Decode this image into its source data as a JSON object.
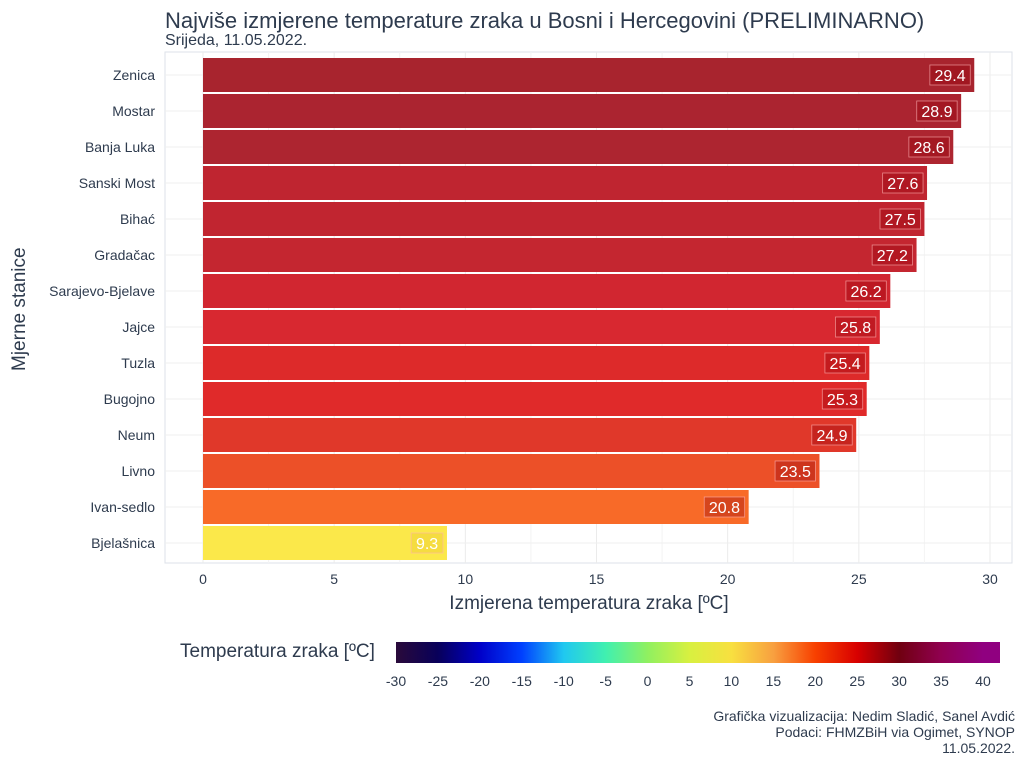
{
  "chart_data": {
    "type": "bar",
    "orientation": "horizontal",
    "title": "Najviše izmjerene temperature zraka u Bosni i Hercegovini (PRELIMINARNO)",
    "subtitle": "Srijeda, 11.05.2022.",
    "xlabel": "Izmjerena temperatura zraka [ºC]",
    "ylabel": "Mjerne stanice",
    "xlim": [
      -1.5,
      30.8
    ],
    "xticks": [
      "0",
      "5",
      "10",
      "15",
      "20",
      "25",
      "30"
    ],
    "grid": true,
    "categories": [
      "Zenica",
      "Mostar",
      "Banja Luka",
      "Sanski Most",
      "Bihać",
      "Gradačac",
      "Sarajevo-Bjelave",
      "Jajce",
      "Tuzla",
      "Bugojno",
      "Neum",
      "Livno",
      "Ivan-sedlo",
      "Bjelašnica"
    ],
    "values": [
      29.4,
      28.9,
      28.6,
      27.6,
      27.5,
      27.2,
      26.2,
      25.8,
      25.4,
      25.3,
      24.9,
      23.5,
      20.8,
      9.3
    ],
    "labels": [
      "29.4",
      "28.9",
      "28.6",
      "27.6",
      "27.5",
      "27.2",
      "26.2",
      "25.8",
      "25.4",
      "25.3",
      "24.9",
      "23.5",
      "20.8",
      "9.3"
    ],
    "colors": [
      "#a8242e",
      "#ab2430",
      "#ad2530",
      "#bf2530",
      "#c12530",
      "#c42630",
      "#d12630",
      "#d82830",
      "#dd2a2a",
      "#e02a2a",
      "#e0382a",
      "#ec5028",
      "#f86a28",
      "#fbe84a"
    ],
    "legend": {
      "title": "Temperatura zraka [ºC]",
      "placement": "bottom",
      "ticks": [
        "-30",
        "-25",
        "-20",
        "-15",
        "-10",
        "-5",
        "0",
        "5",
        "10",
        "15",
        "20",
        "25",
        "30",
        "35",
        "40"
      ],
      "stops": [
        [
          "-30",
          "#2a0a3a"
        ],
        [
          "-25",
          "#08005a"
        ],
        [
          "-20",
          "#0000c8"
        ],
        [
          "-15",
          "#0040ff"
        ],
        [
          "-10",
          "#20c8f0"
        ],
        [
          "-5",
          "#40f0b0"
        ],
        [
          "0",
          "#90f060"
        ],
        [
          "5",
          "#d8f040"
        ],
        [
          "10",
          "#f8e040"
        ],
        [
          "15",
          "#f8a040"
        ],
        [
          "20",
          "#f84000"
        ],
        [
          "25",
          "#d80000"
        ],
        [
          "30",
          "#700010"
        ],
        [
          "35",
          "#900050"
        ],
        [
          "40",
          "#900080"
        ]
      ]
    }
  },
  "credits": [
    "Grafička vizualizacija: Nedim Sladić, Sanel Avdić",
    "Podaci: FHMZBiH via Ogimet, SYNOP",
    "11.05.2022."
  ]
}
